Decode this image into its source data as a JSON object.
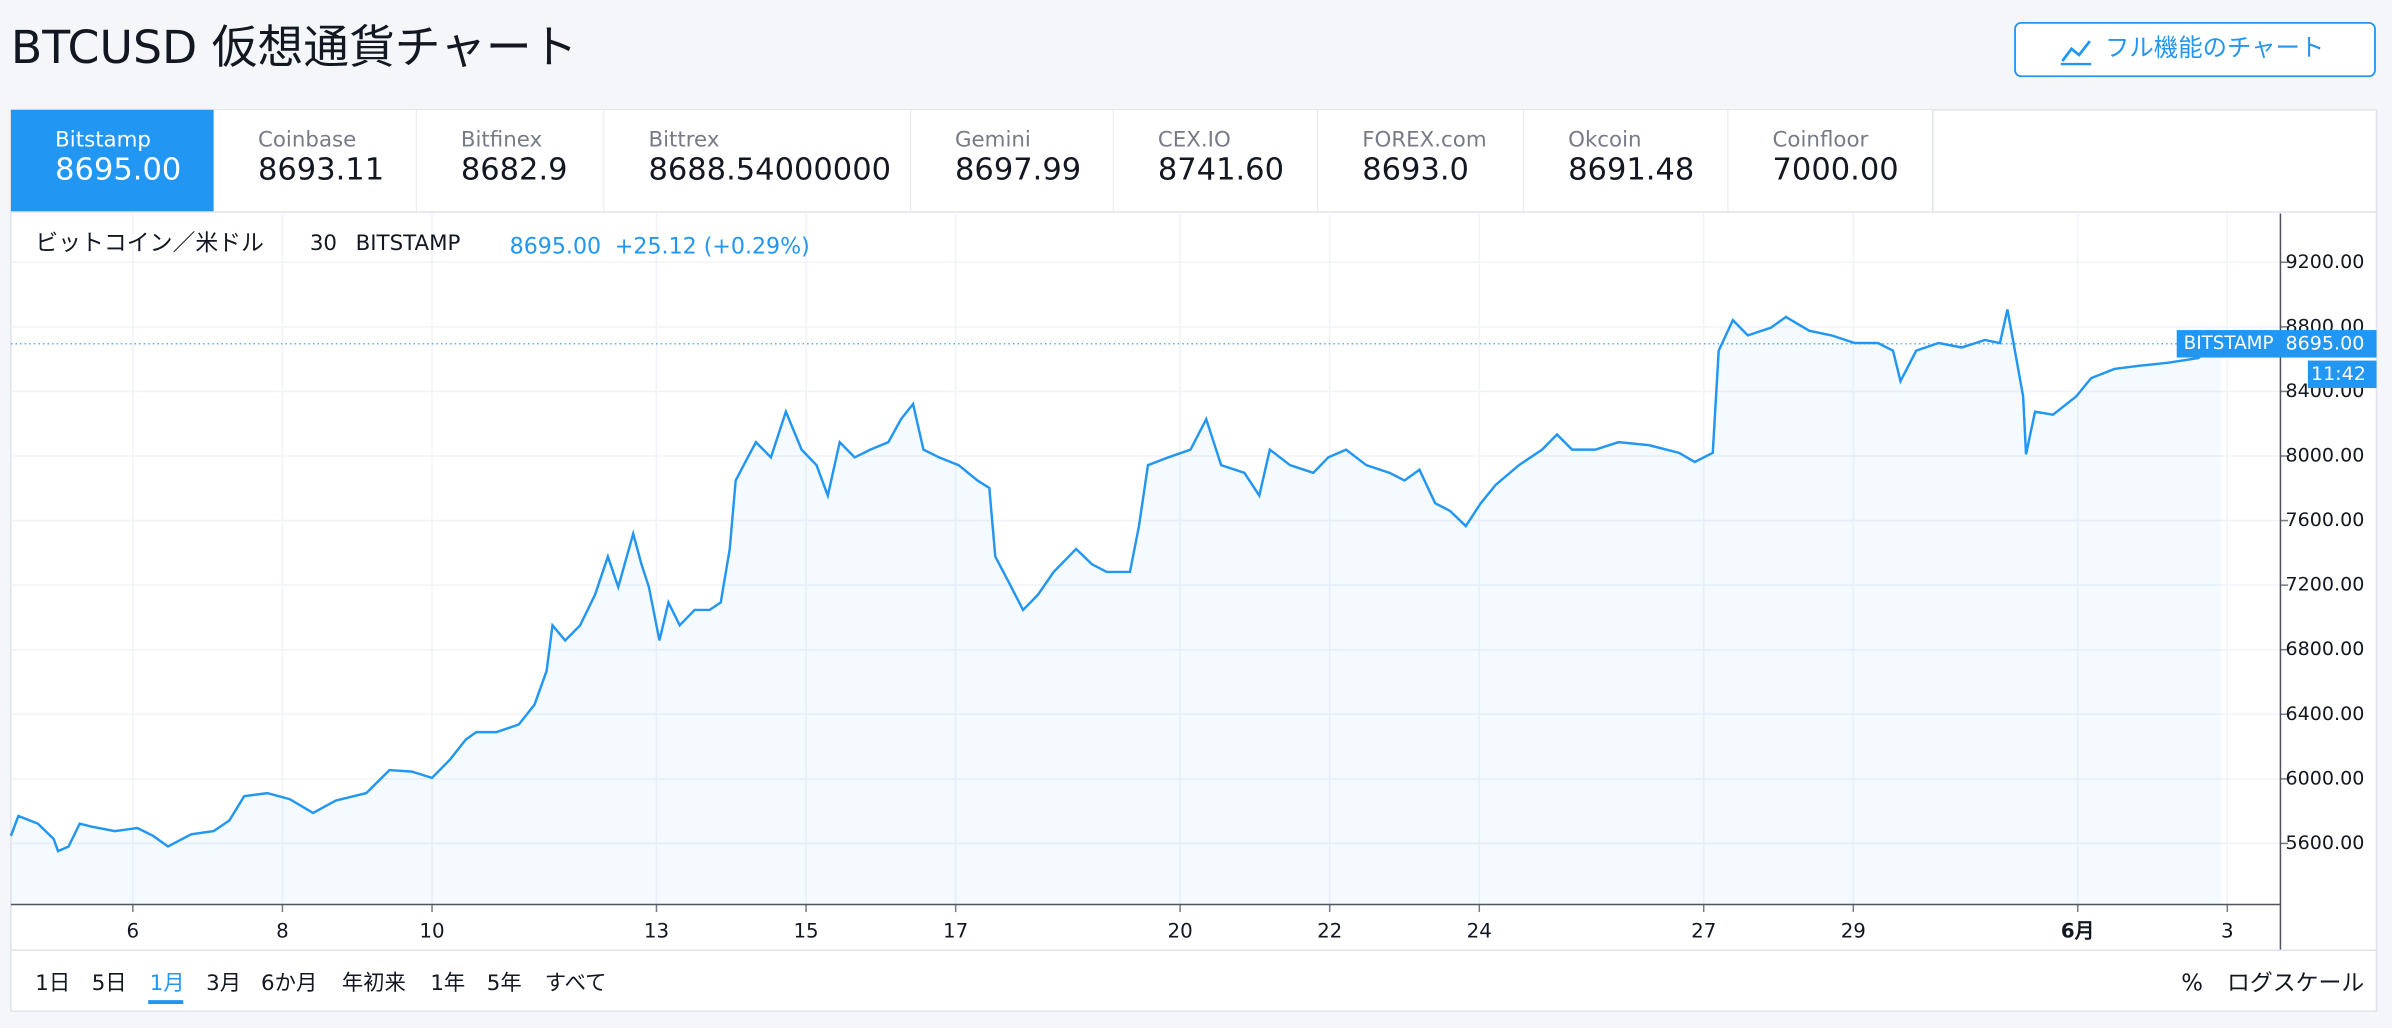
{
  "header": {
    "title": "BTCUSD 仮想通貨チャート",
    "button": "フル機能のチャート"
  },
  "tabs": [
    {
      "name": "Bitstamp",
      "price": "8695.00"
    },
    {
      "name": "Coinbase",
      "price": "8693.11"
    },
    {
      "name": "Bitfinex",
      "price": "8682.9"
    },
    {
      "name": "Bittrex",
      "price": "8688.54000000"
    },
    {
      "name": "Gemini",
      "price": "8697.99"
    },
    {
      "name": "CEX.IO",
      "price": "8741.60"
    },
    {
      "name": "FOREX.com",
      "price": "8693.0"
    },
    {
      "name": "Okcoin",
      "price": "8691.48"
    },
    {
      "name": "Coinfloor",
      "price": "7000.00"
    }
  ],
  "legend": {
    "symbol": "ビットコイン／米ドル",
    "interval": "30",
    "exchange": "BITSTAMP",
    "change": "+25.12 (+0.29%)"
  },
  "chart_data": {
    "type": "line",
    "x": [
      4.37,
      4.47,
      4.73,
      4.94,
      5.0,
      5.14,
      5.29,
      5.45,
      5.76,
      6.06,
      6.27,
      6.47,
      6.78,
      7.08,
      7.29,
      7.49,
      7.8,
      8.1,
      8.41,
      8.71,
      9.12,
      9.43,
      9.73,
      10.0,
      10.24,
      10.45,
      10.59,
      10.86,
      11.16,
      11.37,
      11.53,
      11.61,
      11.78,
      11.98,
      12.18,
      12.35,
      12.49,
      12.69,
      12.8,
      12.9,
      13.04,
      13.16,
      13.31,
      13.51,
      13.71,
      13.86,
      13.98,
      14.06,
      14.22,
      14.33,
      14.53,
      14.73,
      14.94,
      15.14,
      15.29,
      15.45,
      15.65,
      15.86,
      16.1,
      16.27,
      16.43,
      16.57,
      16.78,
      17.04,
      17.29,
      17.45,
      17.53,
      17.69,
      17.9,
      18.1,
      18.31,
      18.61,
      18.82,
      19.02,
      19.33,
      19.45,
      19.57,
      19.84,
      20.14,
      20.35,
      20.55,
      20.86,
      21.06,
      21.2,
      21.47,
      21.78,
      21.98,
      22.22,
      22.49,
      22.8,
      23.0,
      23.2,
      23.41,
      23.61,
      23.82,
      24.02,
      24.22,
      24.53,
      24.84,
      25.04,
      25.24,
      25.55,
      25.86,
      26.27,
      26.67,
      26.88,
      27.12,
      27.2,
      27.39,
      27.59,
      27.9,
      28.1,
      28.41,
      28.71,
      29.02,
      29.33,
      29.53,
      29.63,
      29.84,
      30.14,
      30.45,
      30.76,
      30.96,
      31.06,
      31.16,
      31.27,
      31.31,
      31.43,
      31.67,
      31.98,
      32.18,
      32.49,
      32.8,
      33.2,
      33.61,
      33.92
    ],
    "series": [
      {
        "name": "BITSTAMP",
        "color": "#2196f3",
        "values": [
          5647,
          5770,
          5723,
          5628,
          5553,
          5581,
          5723,
          5704,
          5676,
          5695,
          5647,
          5581,
          5657,
          5676,
          5742,
          5893,
          5912,
          5874,
          5789,
          5865,
          5912,
          6054,
          6045,
          6006,
          6120,
          6243,
          6290,
          6290,
          6337,
          6460,
          6668,
          6951,
          6857,
          6951,
          7141,
          7377,
          7188,
          7519,
          7330,
          7188,
          6857,
          7093,
          6951,
          7046,
          7046,
          7093,
          7424,
          7849,
          7991,
          8086,
          7991,
          8275,
          8039,
          7943,
          7755,
          8086,
          7991,
          8039,
          8086,
          8228,
          8322,
          8039,
          7991,
          7943,
          7849,
          7802,
          7377,
          7235,
          7046,
          7141,
          7282,
          7424,
          7330,
          7282,
          7282,
          7566,
          7943,
          7991,
          8039,
          8228,
          7943,
          7896,
          7755,
          8039,
          7943,
          7896,
          7991,
          8039,
          7943,
          7896,
          7849,
          7915,
          7708,
          7660,
          7566,
          7708,
          7821,
          7943,
          8039,
          8133,
          8039,
          8039,
          8086,
          8067,
          8020,
          7963,
          8020,
          8653,
          8842,
          8747,
          8795,
          8861,
          8776,
          8747,
          8700,
          8700,
          8653,
          8464,
          8653,
          8700,
          8672,
          8719,
          8700,
          8908,
          8653,
          8369,
          8010,
          8275,
          8256,
          8369,
          8483,
          8539,
          8558,
          8577,
          8606,
          8728
        ]
      }
    ],
    "last_price": {
      "value": 8695,
      "label": "8695.00"
    },
    "time_label": "11:42",
    "xlim": [
      4.37,
      34.71
    ],
    "xticks": [
      6,
      8,
      10,
      13,
      15,
      17,
      20,
      22,
      24,
      27,
      29,
      {
        "value": 32,
        "label": "6月"
      },
      {
        "value": 34,
        "label": "3"
      }
    ],
    "ylim": [
      5222,
      9502
    ],
    "yticks": [
      {
        "value": 5600,
        "label": "5600.00"
      },
      {
        "value": 6000,
        "label": "6000.00"
      },
      {
        "value": 6400,
        "label": "6400.00"
      },
      {
        "value": 6800,
        "label": "6800.00"
      },
      {
        "value": 7200,
        "label": "7200.00"
      },
      {
        "value": 7600,
        "label": "7600.00"
      },
      {
        "value": 8000,
        "label": "8000.00"
      },
      {
        "value": 8400,
        "label": "8400.00"
      },
      {
        "value": 8800,
        "label": "8800.00"
      },
      {
        "value": 9200,
        "label": "9200.00"
      }
    ],
    "grid": true
  },
  "ranges": [
    "1日",
    "5日",
    "1月",
    "3月",
    "6か月",
    "年初来",
    "1年",
    "5年",
    "すべて"
  ],
  "toolbar_right": [
    "%",
    "ログスケール"
  ]
}
